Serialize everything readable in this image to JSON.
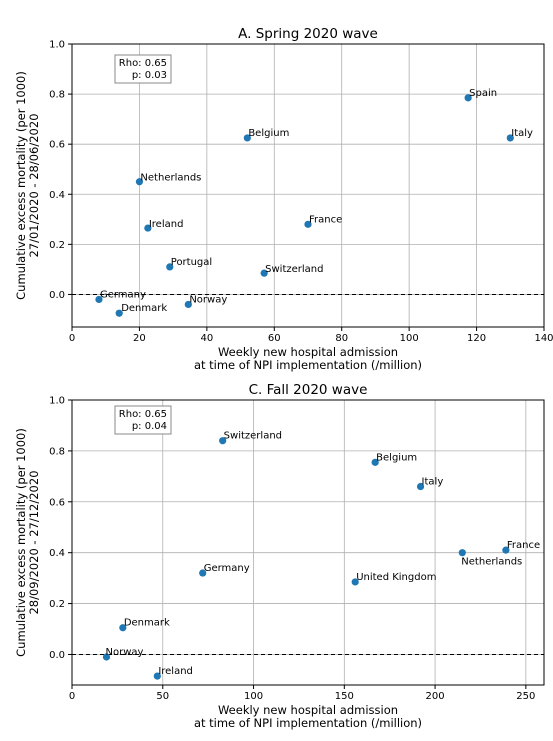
{
  "chart_data": [
    {
      "type": "scatter",
      "title": "A. Spring 2020 wave",
      "xlabel": [
        "Weekly new hospital admission",
        "at time of NPI implementation (/million)"
      ],
      "ylabel": [
        "Cumulative excess mortality (per 1000)",
        "27/01/2020 - 28/06/2020"
      ],
      "xlim": [
        0,
        140
      ],
      "ylim": [
        -0.13,
        1.0
      ],
      "xticks": [
        0,
        20,
        40,
        60,
        80,
        100,
        120,
        140
      ],
      "yticks": [
        0.0,
        0.2,
        0.4,
        0.6,
        0.8,
        1.0
      ],
      "xtick_labels": [
        "0",
        "20",
        "40",
        "60",
        "80",
        "100",
        "120",
        "140"
      ],
      "ytick_labels": [
        "0.0",
        "0.2",
        "0.4",
        "0.6",
        "0.8",
        "1.0"
      ],
      "grid": true,
      "reference_line_y": 0,
      "stats": [
        "Rho: 0.65",
        "p: 0.03"
      ],
      "marker_color": "#1f77b4",
      "points": [
        {
          "label": "Spain",
          "x": 117.5,
          "y": 0.785
        },
        {
          "label": "Italy",
          "x": 130.0,
          "y": 0.625
        },
        {
          "label": "Belgium",
          "x": 52.0,
          "y": 0.625
        },
        {
          "label": "Netherlands",
          "x": 20.0,
          "y": 0.45
        },
        {
          "label": "Ireland",
          "x": 22.5,
          "y": 0.265
        },
        {
          "label": "France",
          "x": 70.0,
          "y": 0.28
        },
        {
          "label": "Portugal",
          "x": 29.0,
          "y": 0.11
        },
        {
          "label": "Switzerland",
          "x": 57.0,
          "y": 0.085
        },
        {
          "label": "Germany",
          "x": 8.0,
          "y": -0.02
        },
        {
          "label": "Norway",
          "x": 34.5,
          "y": -0.04
        },
        {
          "label": "Denmark",
          "x": 14.0,
          "y": -0.075
        }
      ]
    },
    {
      "type": "scatter",
      "title": "C. Fall 2020 wave",
      "xlabel": [
        "Weekly new hospital admission",
        "at time of NPI implementation (/million)"
      ],
      "ylabel": [
        "Cumulative excess mortality (per 1000)",
        "28/09/2020 - 27/12/2020"
      ],
      "xlim": [
        0,
        260
      ],
      "ylim": [
        -0.12,
        1.0
      ],
      "xticks": [
        0,
        50,
        100,
        150,
        200,
        250
      ],
      "yticks": [
        0.0,
        0.2,
        0.4,
        0.6,
        0.8,
        1.0
      ],
      "xtick_labels": [
        "0",
        "50",
        "100",
        "150",
        "200",
        "250"
      ],
      "ytick_labels": [
        "0.0",
        "0.2",
        "0.4",
        "0.6",
        "0.8",
        "1.0"
      ],
      "grid": true,
      "reference_line_y": 0,
      "stats": [
        "Rho: 0.65",
        "p: 0.04"
      ],
      "marker_color": "#1f77b4",
      "points": [
        {
          "label": "Switzerland",
          "x": 83.0,
          "y": 0.84
        },
        {
          "label": "Belgium",
          "x": 167.0,
          "y": 0.755
        },
        {
          "label": "Italy",
          "x": 192.0,
          "y": 0.66
        },
        {
          "label": "France",
          "x": 239.0,
          "y": 0.41
        },
        {
          "label": "Netherlands",
          "x": 215.0,
          "y": 0.4
        },
        {
          "label": "Germany",
          "x": 72.0,
          "y": 0.32
        },
        {
          "label": "United Kingdom",
          "x": 156.0,
          "y": 0.285
        },
        {
          "label": "Denmark",
          "x": 28.0,
          "y": 0.105
        },
        {
          "label": "Norway",
          "x": 19.0,
          "y": -0.01
        },
        {
          "label": "Ireland",
          "x": 47.0,
          "y": -0.085
        }
      ]
    }
  ]
}
